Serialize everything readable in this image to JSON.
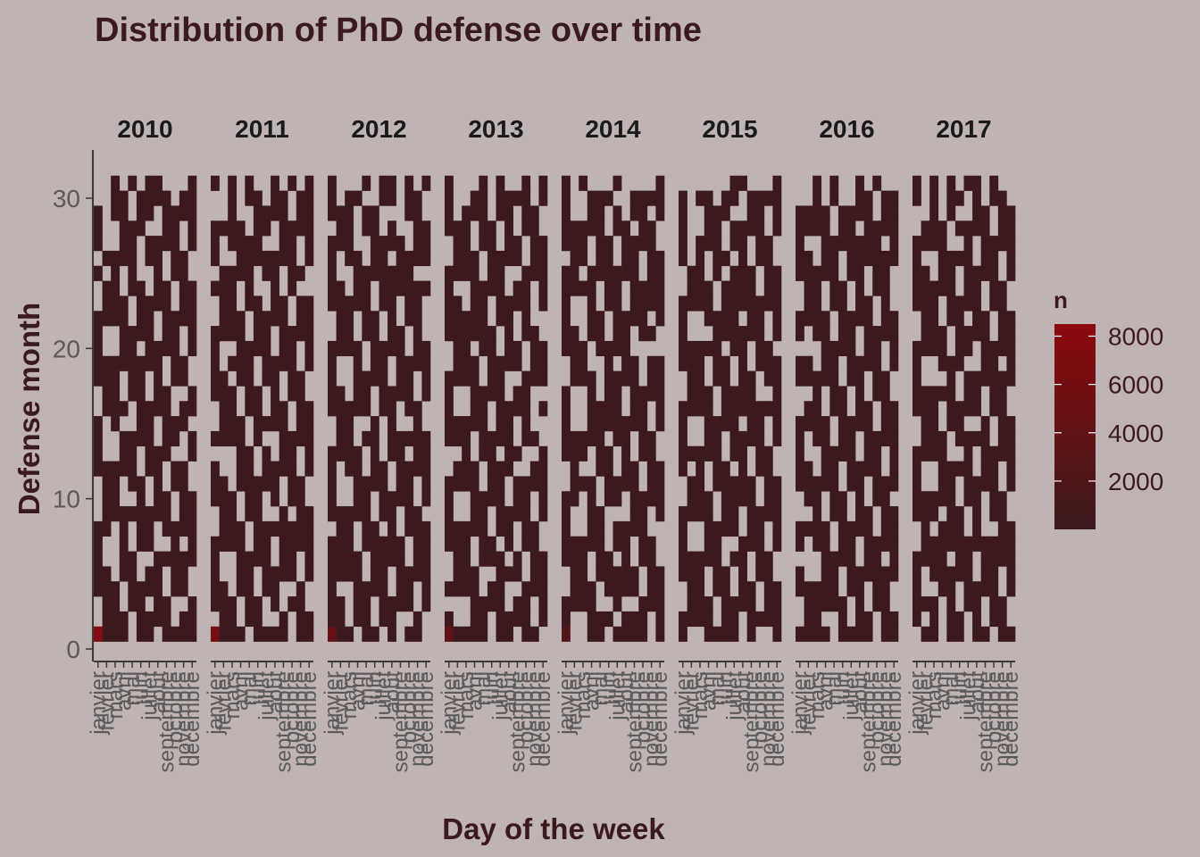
{
  "chart_data": {
    "type": "heatmap",
    "title": "Distribution of PhD defense over time",
    "xlabel": "Day of the week",
    "ylabel": "Defense month",
    "years": [
      "2010",
      "2011",
      "2012",
      "2013",
      "2014",
      "2015",
      "2016",
      "2017"
    ],
    "months": [
      "janvier",
      "février",
      "mars",
      "avril",
      "mai",
      "juin",
      "juillet",
      "août",
      "septembre",
      "octobre",
      "novembre",
      "décembre"
    ],
    "y_ticks": [
      "0",
      "10",
      "20",
      "30"
    ],
    "ylim": [
      0,
      32
    ],
    "day_range": [
      1,
      31
    ],
    "fill_scale": {
      "title": "n",
      "ticks": [
        "2000",
        "4000",
        "6000",
        "8000"
      ],
      "domain": [
        1,
        8500
      ],
      "low_color": "#3A191C",
      "high_color": "#8B0A0F"
    },
    "high_count_cells": [
      {
        "year": "2010",
        "month": "janvier",
        "day": 1,
        "n": 8000
      },
      {
        "year": "2011",
        "month": "janvier",
        "day": 1,
        "n": 6000
      },
      {
        "year": "2012",
        "month": "janvier",
        "day": 1,
        "n": 4500
      },
      {
        "year": "2013",
        "month": "janvier",
        "day": 1,
        "n": 4000
      },
      {
        "year": "2014",
        "month": "janvier",
        "day": 1,
        "n": 2500
      }
    ],
    "typical_cell_count": 200,
    "note_on_gaps": "many (day, month) cells are empty (no defenses, weekends)"
  }
}
